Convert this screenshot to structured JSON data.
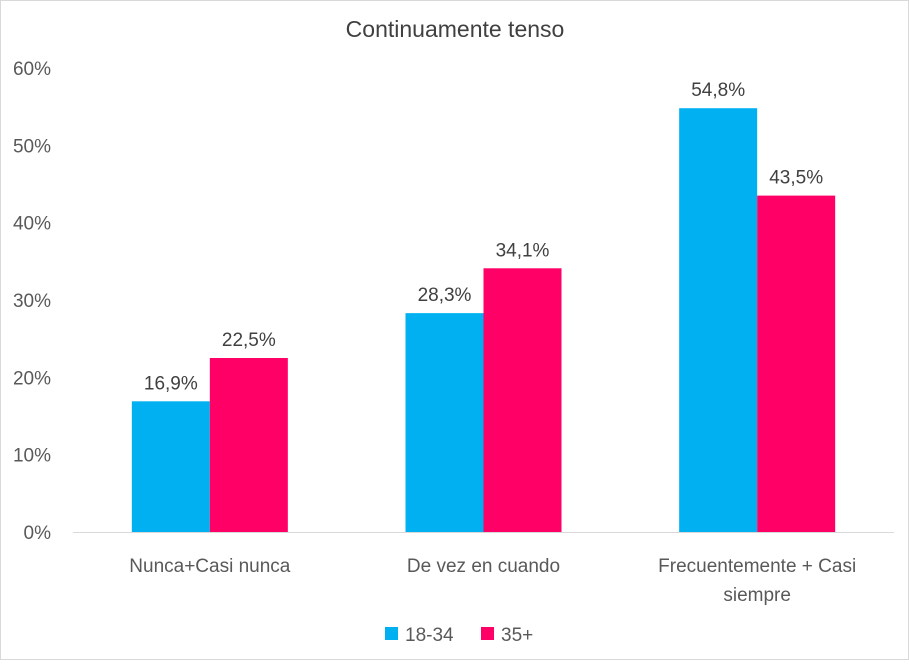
{
  "chart_data": {
    "type": "bar",
    "title": "Continuamente tenso",
    "categories": [
      "Nunca+Casi nunca",
      "De vez en cuando",
      "Frecuentemente + Casi siempre"
    ],
    "category_label_lines": [
      [
        "Nunca+Casi nunca"
      ],
      [
        "De vez en cuando"
      ],
      [
        "Frecuentemente + Casi",
        "siempre"
      ]
    ],
    "series": [
      {
        "name": "18-34",
        "color": "#00B0F0",
        "values": [
          16.9,
          28.3,
          54.8
        ],
        "labels": [
          "16,9%",
          "28,3%",
          "54,8%"
        ]
      },
      {
        "name": "35+",
        "color": "#FF0066",
        "values": [
          22.5,
          34.1,
          43.5
        ],
        "labels": [
          "22,5%",
          "34,1%",
          "43,5%"
        ]
      }
    ],
    "ylim": [
      0,
      60
    ],
    "yticks": [
      0,
      10,
      20,
      30,
      40,
      50,
      60
    ],
    "ytick_labels": [
      "0%",
      "10%",
      "20%",
      "30%",
      "40%",
      "50%",
      "60%"
    ],
    "xlabel": "",
    "ylabel": "",
    "grid": false,
    "legend_position": "bottom"
  }
}
